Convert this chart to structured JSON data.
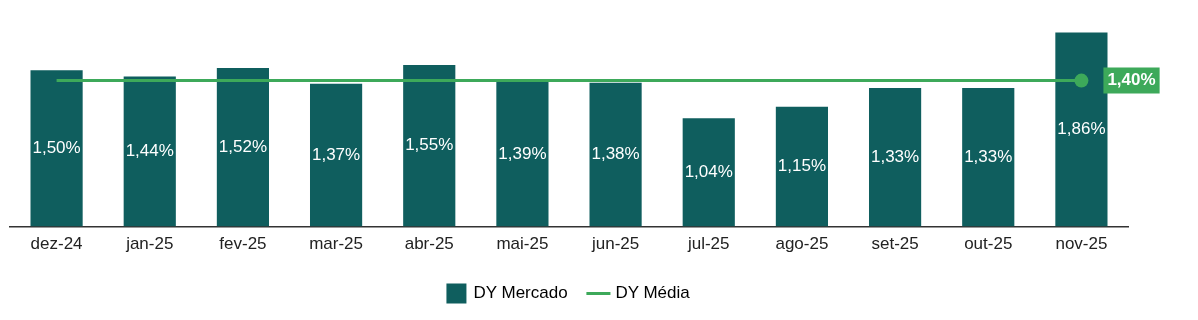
{
  "chart_data": {
    "type": "bar",
    "categories": [
      "dez-24",
      "jan-25",
      "fev-25",
      "mar-25",
      "abr-25",
      "mai-25",
      "jun-25",
      "jul-25",
      "ago-25",
      "set-25",
      "out-25",
      "nov-25"
    ],
    "series": [
      {
        "name": "DY Mercado",
        "color": "#0f5e5e",
        "values": [
          1.5,
          1.44,
          1.52,
          1.37,
          1.55,
          1.39,
          1.38,
          1.04,
          1.15,
          1.33,
          1.33,
          1.86
        ],
        "value_labels": [
          "1,50%",
          "1,44%",
          "1,52%",
          "1,37%",
          "1,55%",
          "1,39%",
          "1,38%",
          "1,04%",
          "1,15%",
          "1,33%",
          "1,33%",
          "1,86%"
        ]
      },
      {
        "name": "DY Média",
        "type": "line",
        "color": "#3da95a",
        "values": [
          1.4,
          1.4,
          1.4,
          1.4,
          1.4,
          1.4,
          1.4,
          1.4,
          1.4,
          1.4,
          1.4,
          1.4
        ],
        "value_labels": [
          null,
          null,
          null,
          null,
          null,
          null,
          null,
          null,
          null,
          null,
          null,
          "1,40%"
        ]
      }
    ],
    "legend": "bottom",
    "grid": false,
    "tick_labels": "x"
  }
}
